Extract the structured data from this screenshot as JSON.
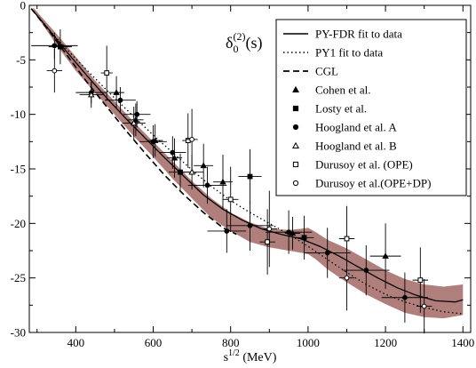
{
  "chart_data": {
    "type": "scatter",
    "title": "",
    "annotation": {
      "main": "δ",
      "sub": "0",
      "sup": "(2)",
      "arg": "(s)"
    },
    "xlabel": {
      "base": "s",
      "sup": "1/2",
      "unit": " (MeV)"
    },
    "ylabel": "",
    "xlim": [
      280,
      1420
    ],
    "ylim": [
      -30,
      0
    ],
    "xticks": [
      400,
      600,
      800,
      1000,
      1200,
      1400
    ],
    "yticks": [
      0,
      -5,
      -10,
      -15,
      -20,
      -25,
      -30
    ],
    "grid": false,
    "legend_position": "top-right",
    "legend": [
      {
        "label": "PY-FDR fit to data",
        "style": "solid-line"
      },
      {
        "label": "PY1 fit to data",
        "style": "dotted-line"
      },
      {
        "label": "CGL",
        "style": "dashed-line"
      },
      {
        "label": "Cohen et al.",
        "style": "filled-triangle"
      },
      {
        "label": "Losty et al.",
        "style": "filled-square"
      },
      {
        "label": "Hoogland et al. A",
        "style": "filled-circle"
      },
      {
        "label": "Hoogland et al. B",
        "style": "open-triangle"
      },
      {
        "label": "Durusoy et al. (OPE)",
        "style": "open-square"
      },
      {
        "label": "Durusoy et al.(OPE+DP)",
        "style": "open-circle"
      }
    ],
    "band": {
      "color": "#b07f7c",
      "upper": [
        [
          290,
          -0.2
        ],
        [
          350,
          -2.6
        ],
        [
          400,
          -4.7
        ],
        [
          450,
          -6.9
        ],
        [
          500,
          -8.8
        ],
        [
          550,
          -10.7
        ],
        [
          600,
          -12.5
        ],
        [
          650,
          -14.3
        ],
        [
          700,
          -16.1
        ],
        [
          750,
          -17.7
        ],
        [
          800,
          -19.0
        ],
        [
          850,
          -19.9
        ],
        [
          900,
          -20.5
        ],
        [
          950,
          -20.6
        ],
        [
          980,
          -20.5
        ],
        [
          1000,
          -20.4
        ],
        [
          1020,
          -20.8
        ],
        [
          1050,
          -21.5
        ],
        [
          1100,
          -22.3
        ],
        [
          1150,
          -23.3
        ],
        [
          1200,
          -24.3
        ],
        [
          1250,
          -25.1
        ],
        [
          1300,
          -25.6
        ],
        [
          1350,
          -25.8
        ],
        [
          1400,
          -25.6
        ]
      ],
      "lower": [
        [
          1400,
          -28.4
        ],
        [
          1350,
          -28.7
        ],
        [
          1300,
          -28.6
        ],
        [
          1250,
          -28.2
        ],
        [
          1200,
          -27.4
        ],
        [
          1150,
          -26.5
        ],
        [
          1100,
          -25.4
        ],
        [
          1050,
          -24.2
        ],
        [
          1020,
          -23.3
        ],
        [
          1000,
          -22.8
        ],
        [
          950,
          -22.5
        ],
        [
          900,
          -22.2
        ],
        [
          850,
          -21.7
        ],
        [
          800,
          -20.7
        ],
        [
          750,
          -19.5
        ],
        [
          700,
          -17.7
        ],
        [
          650,
          -15.9
        ],
        [
          600,
          -13.9
        ],
        [
          550,
          -12.0
        ],
        [
          500,
          -10.0
        ],
        [
          450,
          -8.0
        ],
        [
          400,
          -6.0
        ],
        [
          350,
          -3.6
        ],
        [
          290,
          -0.5
        ]
      ]
    },
    "series": [
      {
        "name": "PY-FDR fit to data",
        "style": "solid",
        "points": [
          [
            285,
            -0.3
          ],
          [
            330,
            -2.2
          ],
          [
            380,
            -4.4
          ],
          [
            430,
            -6.5
          ],
          [
            480,
            -8.5
          ],
          [
            530,
            -10.4
          ],
          [
            580,
            -12.2
          ],
          [
            630,
            -14.0
          ],
          [
            680,
            -15.7
          ],
          [
            730,
            -17.4
          ],
          [
            780,
            -18.7
          ],
          [
            830,
            -19.7
          ],
          [
            880,
            -20.5
          ],
          [
            930,
            -21.0
          ],
          [
            980,
            -21.4
          ],
          [
            1030,
            -22.1
          ],
          [
            1080,
            -23.0
          ],
          [
            1130,
            -24.0
          ],
          [
            1180,
            -25.0
          ],
          [
            1230,
            -25.9
          ],
          [
            1280,
            -26.6
          ],
          [
            1330,
            -27.1
          ],
          [
            1380,
            -27.2
          ],
          [
            1400,
            -27.0
          ]
        ]
      },
      {
        "name": "PY1 fit to data",
        "style": "dotted",
        "points": [
          [
            285,
            -0.3
          ],
          [
            350,
            -3.0
          ],
          [
            400,
            -4.9
          ],
          [
            450,
            -6.7
          ],
          [
            500,
            -8.5
          ],
          [
            550,
            -10.2
          ],
          [
            600,
            -11.9
          ],
          [
            650,
            -13.5
          ],
          [
            700,
            -15.1
          ],
          [
            750,
            -16.6
          ],
          [
            800,
            -17.9
          ],
          [
            850,
            -19.0
          ],
          [
            900,
            -20.0
          ],
          [
            950,
            -21.0
          ],
          [
            1000,
            -22.1
          ],
          [
            1050,
            -23.3
          ],
          [
            1100,
            -24.5
          ],
          [
            1150,
            -25.6
          ],
          [
            1200,
            -26.5
          ],
          [
            1250,
            -27.2
          ],
          [
            1300,
            -27.7
          ],
          [
            1350,
            -28.1
          ],
          [
            1400,
            -28.3
          ]
        ]
      },
      {
        "name": "CGL",
        "style": "dashed",
        "points": [
          [
            285,
            -0.3
          ],
          [
            330,
            -2.3
          ],
          [
            380,
            -4.7
          ],
          [
            430,
            -7.1
          ],
          [
            480,
            -9.3
          ],
          [
            530,
            -11.5
          ],
          [
            580,
            -13.6
          ],
          [
            630,
            -15.6
          ],
          [
            680,
            -17.4
          ],
          [
            730,
            -19.0
          ],
          [
            780,
            -20.4
          ],
          [
            815,
            -21.0
          ]
        ]
      }
    ],
    "data_points": [
      {
        "name": "Hoogland et al. A",
        "marker": "filled-circle",
        "points": [
          {
            "x": 345,
            "y": -3.7,
            "xerr": 60,
            "yerr": 1.2
          },
          {
            "x": 440,
            "y": -8.0,
            "xerr": 40,
            "yerr": 1.0
          },
          {
            "x": 515,
            "y": -8.7,
            "xerr": 40,
            "yerr": 1.2
          },
          {
            "x": 558,
            "y": -10.0,
            "xerr": 35,
            "yerr": 1.2
          },
          {
            "x": 600,
            "y": -12.5,
            "xerr": 35,
            "yerr": 1.5
          },
          {
            "x": 650,
            "y": -13.5,
            "xerr": 35,
            "yerr": 1.5
          },
          {
            "x": 740,
            "y": -16.5,
            "xerr": 50,
            "yerr": 1.7
          },
          {
            "x": 790,
            "y": -20.7,
            "xerr": 50,
            "yerr": 2.0
          },
          {
            "x": 850,
            "y": -20.2,
            "xerr": 60,
            "yerr": 2.3
          },
          {
            "x": 950,
            "y": -20.8,
            "xerr": 60,
            "yerr": 2.0
          },
          {
            "x": 1050,
            "y": -22.7,
            "xerr": 60,
            "yerr": 2.3
          },
          {
            "x": 1150,
            "y": -24.3,
            "xerr": 60,
            "yerr": 2.3
          },
          {
            "x": 1250,
            "y": -26.8,
            "xerr": 60,
            "yerr": 2.3
          }
        ]
      },
      {
        "name": "Cohen et al.",
        "marker": "filled-triangle",
        "points": [
          {
            "x": 505,
            "y": -8.0,
            "xerr": 20,
            "yerr": 1.5
          },
          {
            "x": 555,
            "y": -10.5,
            "xerr": 20,
            "yerr": 1.5
          },
          {
            "x": 605,
            "y": -12.4,
            "xerr": 20,
            "yerr": 1.5
          },
          {
            "x": 655,
            "y": -14.0,
            "xerr": 20,
            "yerr": 1.8
          },
          {
            "x": 730,
            "y": -14.7,
            "xerr": 25,
            "yerr": 2.0
          },
          {
            "x": 780,
            "y": -16.2,
            "xerr": 25,
            "yerr": 2.5
          },
          {
            "x": 960,
            "y": -20.9,
            "xerr": 20,
            "yerr": 1.5
          },
          {
            "x": 1200,
            "y": -23.0,
            "xerr": 40,
            "yerr": 3.0
          }
        ]
      },
      {
        "name": "Losty et al.",
        "marker": "filled-square",
        "points": [
          {
            "x": 360,
            "y": -3.8,
            "xerr": 30,
            "yerr": 1.6
          },
          {
            "x": 670,
            "y": -15.3,
            "xerr": 30,
            "yerr": 1.7
          },
          {
            "x": 850,
            "y": -15.7,
            "xerr": 30,
            "yerr": 2.5
          },
          {
            "x": 990,
            "y": -21.3,
            "xerr": 25,
            "yerr": 2.0
          }
        ]
      },
      {
        "name": "Hoogland et al. B",
        "marker": "open-triangle",
        "points": [
          {
            "x": 440,
            "y": -8.2,
            "xerr": 30,
            "yerr": 1.2
          },
          {
            "x": 550,
            "y": -10.8,
            "xerr": 30,
            "yerr": 1.5
          },
          {
            "x": 700,
            "y": -15.3,
            "xerr": 30,
            "yerr": 1.6
          }
        ]
      },
      {
        "name": "Durusoy et al. (OPE)",
        "marker": "open-square",
        "points": [
          {
            "x": 480,
            "y": -6.2,
            "xerr": 15,
            "yerr": 2.5
          },
          {
            "x": 690,
            "y": -12.4,
            "xerr": 15,
            "yerr": 2.5
          },
          {
            "x": 800,
            "y": -17.8,
            "xerr": 20,
            "yerr": 3.0
          },
          {
            "x": 895,
            "y": -21.7,
            "xerr": 20,
            "yerr": 3.0
          },
          {
            "x": 1100,
            "y": -21.4,
            "xerr": 20,
            "yerr": 3.0
          },
          {
            "x": 1290,
            "y": -25.2,
            "xerr": 20,
            "yerr": 3.0
          }
        ]
      },
      {
        "name": "Durusoy et al.(OPE+DP)",
        "marker": "open-circle",
        "points": [
          {
            "x": 345,
            "y": -6.0,
            "xerr": 20,
            "yerr": 2.0
          },
          {
            "x": 700,
            "y": -12.3,
            "xerr": 15,
            "yerr": 2.8
          },
          {
            "x": 900,
            "y": -20.5,
            "xerr": 20,
            "yerr": 3.5
          },
          {
            "x": 1100,
            "y": -25.0,
            "xerr": 20,
            "yerr": 3.0
          },
          {
            "x": 1300,
            "y": -27.6,
            "xerr": 20,
            "yerr": 2.5
          }
        ]
      }
    ]
  }
}
